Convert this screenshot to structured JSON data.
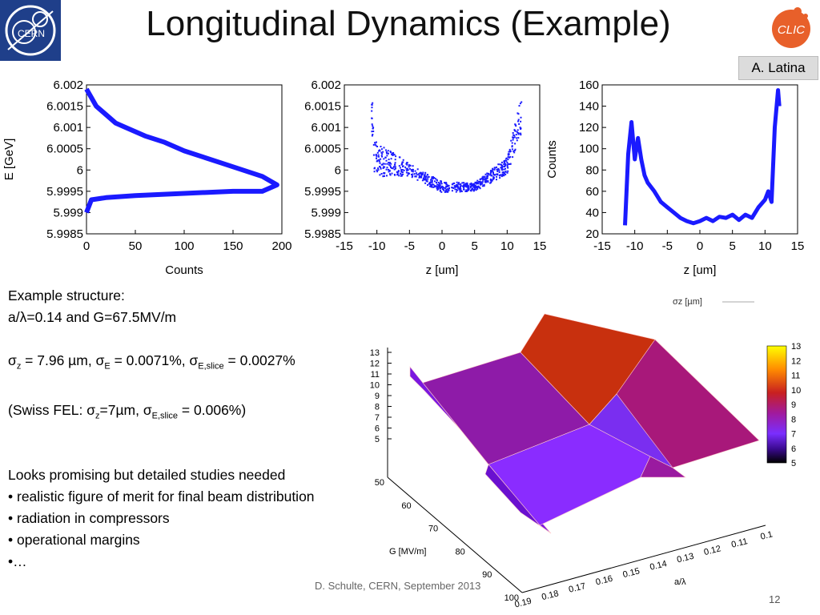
{
  "title": "Longitudinal Dynamics (Example)",
  "author_label": "A. Latina",
  "logos": {
    "left": "CERN",
    "right": "CLIC"
  },
  "colors": {
    "plot_blue": "#1a1aff",
    "cern_blue": "#1f3f8a",
    "clic_orange": "#e8602a"
  },
  "text": {
    "structure_label": "Example structure:",
    "structure_params": "a/λ=0.14 and G=67.5MV/m",
    "sigma_line": {
      "p1": "σ",
      "s1": "z",
      "p2": " = 7.96 µm, σ",
      "s2": "E",
      "p3": " = 0.0071%, σ",
      "s3": "E,slice",
      "p4": " = 0.0027%"
    },
    "swiss_line": {
      "p1": "(Swiss FEL: σ",
      "s1": "z",
      "p2": "=7µm, σ",
      "s2": "E,slice",
      "p3": " = 0.006%)"
    },
    "conclusion": "Looks promising but detailed studies needed",
    "bullets": [
      "• realistic figure of merit for final beam distribution",
      "• radiation in compressors",
      "• operational margins",
      "•…"
    ]
  },
  "footer": "D. Schulte, CERN, September 2013",
  "page_number": "12",
  "chart_data": [
    {
      "type": "line",
      "xlabel": "Counts",
      "ylabel": "E [GeV]",
      "xlim": [
        0,
        200
      ],
      "ylim": [
        5.9985,
        6.002
      ],
      "xticks": [
        "0",
        "50",
        "100",
        "150",
        "200"
      ],
      "yticks": [
        "6.002",
        "6.0015",
        "6.001",
        "6.0005",
        "6",
        "5.9995",
        "5.999",
        "5.9985"
      ],
      "x": [
        0,
        5,
        10,
        20,
        30,
        40,
        60,
        80,
        100,
        120,
        140,
        160,
        180,
        195,
        180,
        150,
        100,
        50,
        20,
        5,
        0
      ],
      "y": [
        6.0019,
        6.0017,
        6.0015,
        6.0013,
        6.0011,
        6.001,
        6.0008,
        6.00065,
        6.00045,
        6.0003,
        6.00015,
        6.0,
        5.99985,
        5.99965,
        5.9995,
        5.9995,
        5.99945,
        5.9994,
        5.99935,
        5.9993,
        5.999
      ]
    },
    {
      "type": "scatter",
      "xlabel": "z [um]",
      "ylabel": "",
      "xlim": [
        -15,
        15
      ],
      "ylim": [
        5.9985,
        6.002
      ],
      "xticks": [
        "-15",
        "-10",
        "-5",
        "0",
        "5",
        "10",
        "15"
      ],
      "yticks": [
        "6.002",
        "6.0015",
        "6.001",
        "6.0005",
        "6",
        "5.9995",
        "5.999",
        "5.9985"
      ],
      "x_range": [
        -10.8,
        12.2
      ],
      "trend": [
        {
          "z": -10.5,
          "E": 6.0003
        },
        {
          "z": -5,
          "E": 6.0
        },
        {
          "z": 0,
          "E": 5.9996
        },
        {
          "z": 5,
          "E": 5.9996
        },
        {
          "z": 10,
          "E": 6.0001
        },
        {
          "z": 12,
          "E": 6.0012
        }
      ],
      "spread": [
        {
          "z": -10.5,
          "E": 0.0009
        },
        {
          "z": -5,
          "E": 0.0003
        },
        {
          "z": 0,
          "E": 0.00025
        },
        {
          "z": 5,
          "E": 0.0002
        },
        {
          "z": 10,
          "E": 0.0004
        },
        {
          "z": 12,
          "E": 0.0008
        }
      ]
    },
    {
      "type": "line",
      "xlabel": "z [um]",
      "ylabel": "Counts",
      "xlim": [
        -15,
        15
      ],
      "ylim": [
        20,
        160
      ],
      "xticks": [
        "-15",
        "-10",
        "-5",
        "0",
        "5",
        "10",
        "15"
      ],
      "yticks": [
        "160",
        "140",
        "120",
        "100",
        "80",
        "60",
        "40",
        "20"
      ],
      "x": [
        -11.5,
        -11,
        -10.5,
        -10,
        -9.5,
        -9,
        -8.5,
        -8,
        -7,
        -6,
        -5,
        -4,
        -3,
        -2,
        -1,
        0,
        1,
        2,
        3,
        4,
        5,
        6,
        7,
        8,
        9,
        10,
        10.5,
        11,
        11.5,
        12,
        12.2
      ],
      "y": [
        28,
        95,
        125,
        90,
        110,
        90,
        75,
        68,
        60,
        50,
        45,
        40,
        35,
        32,
        30,
        32,
        35,
        32,
        36,
        35,
        38,
        33,
        38,
        35,
        45,
        52,
        60,
        50,
        120,
        155,
        140
      ]
    },
    {
      "type": "surface",
      "xlabel": "a/λ",
      "ylabel": "G [MV/m]",
      "zlabel": "",
      "legend_entry": "σz [µm]",
      "x_ticks": [
        "0.19",
        "0.18",
        "0.17",
        "0.16",
        "0.15",
        "0.14",
        "0.13",
        "0.12",
        "0.11",
        "0.1"
      ],
      "y_ticks": [
        "50",
        "60",
        "70",
        "80",
        "90",
        "100"
      ],
      "z_ticks": [
        "13",
        "12",
        "11",
        "10",
        "9",
        "8",
        "7",
        "6",
        "5"
      ],
      "colorbar_ticks": [
        "13",
        "12",
        "11",
        "10",
        "9",
        "8",
        "7",
        "6",
        "5"
      ]
    }
  ]
}
